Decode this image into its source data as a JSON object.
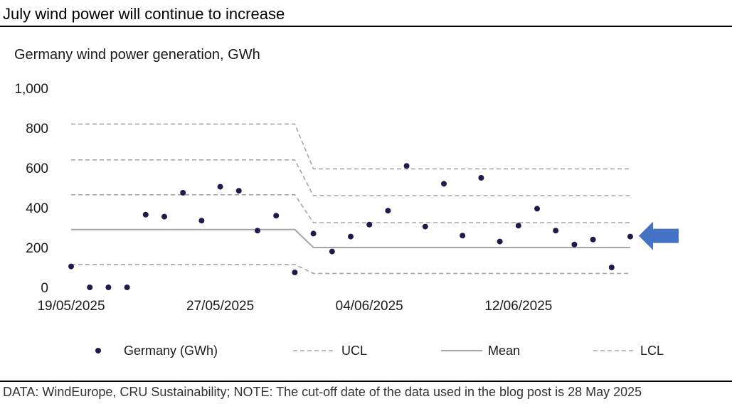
{
  "headline": "July wind power will continue to increase",
  "footer": "DATA: WindEurope, CRU Sustainability; NOTE: The cut-off date of the data used in the blog post is 28 May 2025",
  "colors": {
    "points": "#1f1b4d",
    "mean": "#a6a6a6",
    "ucl": "#a6a6a6",
    "lcl": "#a6a6a6",
    "arrow": "#4472c4"
  },
  "chart_data": {
    "type": "scatter",
    "title": "Germany wind power generation, GWh",
    "ylim": [
      0,
      1000
    ],
    "yticks": [
      0,
      200,
      400,
      600,
      800,
      1000
    ],
    "ytick_labels": [
      "0",
      "200",
      "400",
      "600",
      "800",
      "1,000"
    ],
    "xtick_labels": [
      {
        "x": 0,
        "label": "19/05/2025"
      },
      {
        "x": 8,
        "label": "27/05/2025"
      },
      {
        "x": 16,
        "label": "04/06/2025"
      },
      {
        "x": 24,
        "label": "12/06/2025"
      }
    ],
    "grid": false,
    "legend_position": "bottom",
    "series": [
      {
        "name": "Germany (GWh)",
        "kind": "points",
        "points": [
          [
            0,
            105
          ],
          [
            1,
            0
          ],
          [
            2,
            0
          ],
          [
            3,
            0
          ],
          [
            4,
            365
          ],
          [
            5,
            355
          ],
          [
            6,
            475
          ],
          [
            7,
            335
          ],
          [
            8,
            505
          ],
          [
            9,
            485
          ],
          [
            10,
            285
          ],
          [
            11,
            360
          ],
          [
            12,
            75
          ],
          [
            13,
            270
          ],
          [
            14,
            180
          ],
          [
            15,
            255
          ],
          [
            16,
            315
          ],
          [
            17,
            385
          ],
          [
            18,
            610
          ],
          [
            19,
            305
          ],
          [
            20,
            520
          ],
          [
            21,
            260
          ],
          [
            22,
            550
          ],
          [
            23,
            230
          ],
          [
            24,
            310
          ],
          [
            25,
            395
          ],
          [
            26,
            285
          ],
          [
            27,
            215
          ],
          [
            28,
            240
          ],
          [
            29,
            100
          ],
          [
            30,
            255
          ]
        ]
      },
      {
        "name": "UCL",
        "kind": "dashed",
        "segments": [
          [
            [
              0,
              820
            ],
            [
              12,
              820
            ],
            [
              13,
              595
            ],
            [
              30,
              595
            ]
          ],
          [
            [
              0,
              640
            ],
            [
              12,
              640
            ],
            [
              13,
              460
            ],
            [
              30,
              460
            ]
          ],
          [
            [
              0,
              465
            ],
            [
              12,
              465
            ],
            [
              13,
              325
            ],
            [
              30,
              325
            ]
          ]
        ]
      },
      {
        "name": "Mean",
        "kind": "solid",
        "segments": [
          [
            [
              0,
              290
            ],
            [
              12,
              290
            ],
            [
              13,
              200
            ],
            [
              30,
              200
            ]
          ]
        ]
      },
      {
        "name": "LCL",
        "kind": "dashed",
        "segments": [
          [
            [
              0,
              115
            ],
            [
              12,
              115
            ],
            [
              13,
              70
            ],
            [
              30,
              70
            ]
          ]
        ]
      }
    ]
  }
}
